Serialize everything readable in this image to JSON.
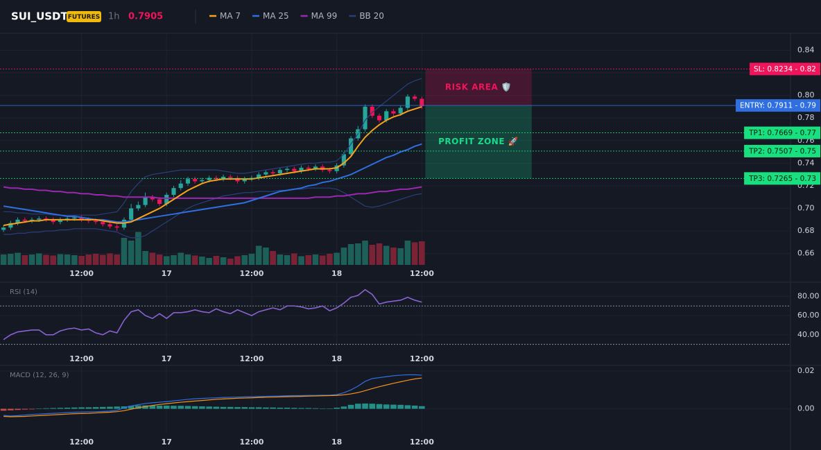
{
  "header": {
    "symbol": "SUI_USDT",
    "badge": "FUTURES",
    "interval": "1h",
    "price": "0.7905"
  },
  "chart_data": [
    {
      "type": "candlestick",
      "categories": [
        null,
        null,
        null,
        null,
        null,
        null,
        null,
        null,
        null,
        null,
        null,
        null,
        null,
        null,
        null,
        null,
        null,
        null,
        null,
        null,
        null,
        null,
        null,
        null,
        null,
        null,
        null,
        null,
        null,
        null,
        null,
        null,
        null,
        null,
        null,
        null,
        null,
        null,
        null,
        null,
        null,
        null,
        null,
        null,
        null,
        null,
        null,
        null,
        null,
        null,
        null,
        null,
        null,
        null,
        null,
        null,
        null,
        null,
        null,
        null
      ],
      "xlim": [
        -0.5,
        111
      ],
      "xticks": [
        {
          "value": 11,
          "label": "12:00"
        },
        {
          "value": 23,
          "label": "17"
        },
        {
          "value": 35,
          "label": "12:00"
        },
        {
          "value": 47,
          "label": "18"
        },
        {
          "value": 59,
          "label": "12:00"
        }
      ],
      "ylim": [
        0.65,
        0.855
      ],
      "yticks": [
        0.66,
        0.68,
        {
          "value": 0.7,
          "label": "0.70"
        },
        0.72,
        0.74,
        0.76,
        0.78,
        {
          "value": 0.8,
          "label": "0.80"
        },
        0.82,
        0.84
      ],
      "up_color": "#26a69a",
      "down_color": "#f0145a",
      "open": [
        0.681,
        0.683,
        0.687,
        0.69,
        0.689,
        0.69,
        0.691,
        0.69,
        0.688,
        0.69,
        0.691,
        0.692,
        0.69,
        0.689,
        0.688,
        0.686,
        0.684,
        0.683,
        0.69,
        0.7,
        0.703,
        0.71,
        0.708,
        0.704,
        0.712,
        0.718,
        0.722,
        0.726,
        0.724,
        0.725,
        0.727,
        0.726,
        0.728,
        0.727,
        0.724,
        0.726,
        0.727,
        0.73,
        0.732,
        0.731,
        0.734,
        0.735,
        0.733,
        0.736,
        0.735,
        0.737,
        0.734,
        0.733,
        0.738,
        0.748,
        0.762,
        0.77,
        0.79,
        0.782,
        0.778,
        0.786,
        0.784,
        0.789,
        0.799,
        0.797
      ],
      "high": [
        0.685,
        0.689,
        0.692,
        0.692,
        0.692,
        0.693,
        0.693,
        0.692,
        0.692,
        0.693,
        0.694,
        0.694,
        0.692,
        0.691,
        0.69,
        0.688,
        0.686,
        0.692,
        0.704,
        0.706,
        0.714,
        0.712,
        0.71,
        0.714,
        0.72,
        0.725,
        0.728,
        0.728,
        0.727,
        0.729,
        0.729,
        0.73,
        0.73,
        0.729,
        0.728,
        0.729,
        0.732,
        0.734,
        0.734,
        0.736,
        0.737,
        0.737,
        0.738,
        0.738,
        0.739,
        0.739,
        0.736,
        0.74,
        0.75,
        0.764,
        0.773,
        0.792,
        0.792,
        0.784,
        0.788,
        0.788,
        0.791,
        0.801,
        0.801,
        0.799
      ],
      "low": [
        0.679,
        0.681,
        0.685,
        0.687,
        0.687,
        0.688,
        0.688,
        0.686,
        0.686,
        0.688,
        0.689,
        0.688,
        0.687,
        0.686,
        0.684,
        0.682,
        0.68,
        0.681,
        0.688,
        0.698,
        0.701,
        0.706,
        0.702,
        0.702,
        0.71,
        0.716,
        0.72,
        0.722,
        0.722,
        0.723,
        0.724,
        0.724,
        0.725,
        0.722,
        0.722,
        0.724,
        0.725,
        0.728,
        0.729,
        0.729,
        0.732,
        0.731,
        0.731,
        0.733,
        0.733,
        0.732,
        0.731,
        0.731,
        0.736,
        0.746,
        0.76,
        0.768,
        0.78,
        0.776,
        0.776,
        0.782,
        0.782,
        0.787,
        0.795,
        0.788
      ],
      "close": [
        0.683,
        0.687,
        0.69,
        0.689,
        0.69,
        0.691,
        0.69,
        0.688,
        0.69,
        0.691,
        0.692,
        0.69,
        0.689,
        0.688,
        0.686,
        0.684,
        0.683,
        0.69,
        0.7,
        0.703,
        0.71,
        0.708,
        0.704,
        0.712,
        0.718,
        0.722,
        0.726,
        0.724,
        0.725,
        0.727,
        0.726,
        0.728,
        0.727,
        0.724,
        0.726,
        0.727,
        0.73,
        0.732,
        0.731,
        0.734,
        0.735,
        0.733,
        0.736,
        0.735,
        0.737,
        0.734,
        0.733,
        0.738,
        0.748,
        0.762,
        0.77,
        0.79,
        0.782,
        0.778,
        0.786,
        0.784,
        0.789,
        0.799,
        0.797,
        0.7905
      ],
      "volume": {
        "ylim": [
          0,
          120
        ],
        "up_color": "#1d5f59",
        "down_color": "#7b2336",
        "values": [
          30,
          32,
          35,
          28,
          30,
          33,
          29,
          27,
          31,
          30,
          28,
          26,
          30,
          32,
          29,
          33,
          30,
          78,
          70,
          95,
          40,
          35,
          30,
          25,
          28,
          35,
          30,
          27,
          24,
          20,
          26,
          22,
          18,
          25,
          28,
          32,
          55,
          50,
          40,
          30,
          28,
          33,
          25,
          28,
          30,
          27,
          32,
          35,
          50,
          60,
          62,
          70,
          58,
          62,
          55,
          50,
          48,
          70,
          65,
          68
        ]
      },
      "series": [
        {
          "name": "MA 7",
          "color": "#f7a21b",
          "values": [
            0.685,
            0.686,
            0.687,
            0.688,
            0.689,
            0.689,
            0.69,
            0.69,
            0.69,
            0.69,
            0.69,
            0.69,
            0.69,
            0.69,
            0.689,
            0.688,
            0.687,
            0.687,
            0.688,
            0.691,
            0.694,
            0.697,
            0.7,
            0.704,
            0.708,
            0.712,
            0.716,
            0.719,
            0.722,
            0.724,
            0.725,
            0.726,
            0.726,
            0.726,
            0.726,
            0.726,
            0.727,
            0.728,
            0.729,
            0.73,
            0.731,
            0.732,
            0.733,
            0.734,
            0.735,
            0.735,
            0.735,
            0.736,
            0.74,
            0.746,
            0.755,
            0.763,
            0.769,
            0.774,
            0.778,
            0.781,
            0.783,
            0.786,
            0.788,
            0.79
          ]
        },
        {
          "name": "MA 25",
          "color": "#2f6fe0",
          "values": [
            0.702,
            0.701,
            0.7,
            0.699,
            0.698,
            0.697,
            0.696,
            0.695,
            0.694,
            0.693,
            0.693,
            0.692,
            0.691,
            0.69,
            0.69,
            0.689,
            0.688,
            0.688,
            0.689,
            0.69,
            0.691,
            0.692,
            0.693,
            0.694,
            0.695,
            0.696,
            0.697,
            0.698,
            0.699,
            0.7,
            0.701,
            0.702,
            0.703,
            0.704,
            0.705,
            0.707,
            0.709,
            0.711,
            0.713,
            0.715,
            0.716,
            0.717,
            0.718,
            0.72,
            0.721,
            0.723,
            0.724,
            0.726,
            0.728,
            0.73,
            0.733,
            0.736,
            0.739,
            0.742,
            0.745,
            0.747,
            0.75,
            0.752,
            0.755,
            0.757
          ]
        },
        {
          "name": "MA 99",
          "color": "#9c27b0",
          "values": [
            0.719,
            0.718,
            0.718,
            0.717,
            0.717,
            0.716,
            0.716,
            0.715,
            0.715,
            0.714,
            0.714,
            0.713,
            0.713,
            0.712,
            0.712,
            0.711,
            0.711,
            0.71,
            0.71,
            0.71,
            0.71,
            0.71,
            0.709,
            0.709,
            0.709,
            0.709,
            0.709,
            0.709,
            0.709,
            0.709,
            0.709,
            0.709,
            0.709,
            0.709,
            0.709,
            0.709,
            0.709,
            0.709,
            0.709,
            0.709,
            0.709,
            0.709,
            0.709,
            0.709,
            0.71,
            0.71,
            0.71,
            0.711,
            0.711,
            0.712,
            0.713,
            0.713,
            0.714,
            0.715,
            0.715,
            0.716,
            0.717,
            0.717,
            0.718,
            0.719
          ]
        },
        {
          "name": "BB 20",
          "color": "#2a3f7a",
          "values": [
            0.697,
            0.697,
            0.696,
            0.696,
            0.695,
            0.695,
            0.695,
            0.694,
            0.694,
            0.694,
            0.694,
            0.694,
            0.694,
            0.694,
            0.695,
            0.696,
            0.697,
            0.705,
            0.715,
            0.722,
            0.728,
            0.73,
            0.731,
            0.732,
            0.733,
            0.734,
            0.734,
            0.734,
            0.734,
            0.734,
            0.734,
            0.733,
            0.732,
            0.731,
            0.731,
            0.732,
            0.733,
            0.734,
            0.735,
            0.736,
            0.737,
            0.738,
            0.739,
            0.74,
            0.74,
            0.741,
            0.741,
            0.742,
            0.748,
            0.757,
            0.766,
            0.778,
            0.785,
            0.79,
            0.795,
            0.8,
            0.805,
            0.81,
            0.813,
            0.815
          ],
          "lower": [
            0.677,
            0.677,
            0.678,
            0.678,
            0.679,
            0.679,
            0.68,
            0.68,
            0.681,
            0.681,
            0.682,
            0.682,
            0.682,
            0.682,
            0.681,
            0.68,
            0.679,
            0.676,
            0.674,
            0.674,
            0.676,
            0.68,
            0.684,
            0.688,
            0.692,
            0.696,
            0.7,
            0.703,
            0.705,
            0.707,
            0.709,
            0.711,
            0.712,
            0.713,
            0.714,
            0.714,
            0.715,
            0.715,
            0.715,
            0.716,
            0.716,
            0.717,
            0.717,
            0.718,
            0.718,
            0.718,
            0.718,
            0.717,
            0.714,
            0.71,
            0.706,
            0.702,
            0.701,
            0.702,
            0.704,
            0.706,
            0.708,
            0.71,
            0.712,
            0.713
          ]
        }
      ],
      "levels": [
        {
          "value": 0.8234,
          "label": "SL: 0.8234 - 0.82",
          "color": "#f0145a",
          "text_color": "#ffffff",
          "style": "dotted"
        },
        {
          "value": 0.7911,
          "label": "ENTRY: 0.7911 - 0.79",
          "color": "#2f6fe0",
          "text_color": "#ffffff",
          "style": "solid"
        },
        {
          "value": 0.7669,
          "label": "TP1: 0.7669 - 0.77",
          "color": "#19e07f",
          "text_color": "#0b1a12",
          "style": "dotted"
        },
        {
          "value": 0.7507,
          "label": "TP2: 0.7507 - 0.75",
          "color": "#19e07f",
          "text_color": "#0b1a12",
          "style": "dotted"
        },
        {
          "value": 0.7265,
          "label": "TP3: 0.7265 - 0.73",
          "color": "#19e07f",
          "text_color": "#0b1a12",
          "style": "dotted"
        }
      ],
      "zones": [
        {
          "label": "RISK AREA 🛡️",
          "from": 0.7911,
          "to": 0.8234,
          "start": 59.5,
          "end": 74.5,
          "color": "#f0145a"
        },
        {
          "label": "PROFIT ZONE 🚀",
          "from": 0.7265,
          "to": 0.7911,
          "start": 59.5,
          "end": 74.5,
          "color": "#19d98b"
        }
      ]
    },
    {
      "type": "line",
      "title": "RSI (14)",
      "color": "#8a63d2",
      "ylim": [
        24,
        94
      ],
      "yticks": [
        {
          "value": 40,
          "label": "40.00"
        },
        {
          "value": 60,
          "label": "60.00"
        },
        {
          "value": 80,
          "label": "80.00"
        }
      ],
      "levels": [
        70,
        30
      ],
      "values": [
        35,
        40,
        43,
        44,
        45,
        45,
        40,
        40,
        44,
        46,
        47,
        45,
        46,
        42,
        40,
        44,
        42,
        55,
        64,
        66,
        60,
        57,
        62,
        57,
        63,
        63,
        64,
        66,
        64,
        63,
        67,
        64,
        62,
        66,
        63,
        60,
        64,
        66,
        68,
        66,
        70,
        70,
        69,
        67,
        68,
        70,
        65,
        68,
        73,
        79,
        81,
        87,
        82,
        72,
        74,
        75,
        76,
        79,
        76,
        74
      ]
    },
    {
      "type": "bar",
      "title": "MACD (12, 26, 9)",
      "ylim": [
        -0.013,
        0.0226
      ],
      "yticks": [
        {
          "value": 0,
          "label": "0.00"
        },
        0.02
      ],
      "up_color": "#26a69a",
      "down_color": "#ef5350",
      "values": [
        -0.001,
        -0.0008,
        -0.0006,
        -0.0004,
        -0.0003,
        0.0002,
        0.0003,
        0.0004,
        0.0005,
        0.0006,
        0.0007,
        0.0008,
        0.0008,
        0.0009,
        0.001,
        0.0011,
        0.0012,
        0.0013,
        0.0016,
        0.0018,
        0.0018,
        0.0018,
        0.0017,
        0.0017,
        0.0016,
        0.0016,
        0.0015,
        0.0014,
        0.0013,
        0.0012,
        0.0011,
        0.001,
        0.001,
        0.0009,
        0.0009,
        0.0008,
        0.0008,
        0.0007,
        0.0007,
        0.0006,
        0.0006,
        0.0005,
        0.0004,
        0.0004,
        0.0003,
        0.0002,
        0.0002,
        0.0006,
        0.0012,
        0.0021,
        0.0027,
        0.0028,
        0.0027,
        0.0025,
        0.0023,
        0.0022,
        0.0021,
        0.0019,
        0.0017,
        0.0014
      ],
      "series": [
        {
          "color": "#2f6fe0",
          "values": [
            -0.0035,
            -0.0038,
            -0.0036,
            -0.0033,
            -0.003,
            -0.0028,
            -0.0026,
            -0.0024,
            -0.0022,
            -0.002,
            -0.0018,
            -0.0017,
            -0.0016,
            -0.0015,
            -0.0014,
            -0.0012,
            -0.0008,
            0.0005,
            0.0015,
            0.0022,
            0.0028,
            0.0032,
            0.0035,
            0.0038,
            0.0042,
            0.0046,
            0.005,
            0.0053,
            0.0055,
            0.0057,
            0.0058,
            0.006,
            0.0061,
            0.0062,
            0.0063,
            0.0064,
            0.0065,
            0.0066,
            0.0067,
            0.0068,
            0.0069,
            0.007,
            0.007,
            0.0071,
            0.0071,
            0.0072,
            0.0072,
            0.0075,
            0.0085,
            0.01,
            0.012,
            0.0145,
            0.016,
            0.0165,
            0.017,
            0.0175,
            0.0178,
            0.018,
            0.018,
            0.0178
          ]
        },
        {
          "color": "#f7931a",
          "values": [
            -0.004,
            -0.0042,
            -0.0041,
            -0.004,
            -0.0038,
            -0.0036,
            -0.0034,
            -0.0032,
            -0.003,
            -0.0028,
            -0.0026,
            -0.0025,
            -0.0024,
            -0.0022,
            -0.002,
            -0.0018,
            -0.0015,
            -0.001,
            -0.0002,
            0.0005,
            0.0012,
            0.0018,
            0.0023,
            0.0027,
            0.0031,
            0.0035,
            0.0038,
            0.0041,
            0.0044,
            0.0047,
            0.005,
            0.0052,
            0.0054,
            0.0056,
            0.0057,
            0.0058,
            0.006,
            0.0061,
            0.0062,
            0.0063,
            0.0064,
            0.0065,
            0.0066,
            0.0067,
            0.0068,
            0.0069,
            0.007,
            0.0071,
            0.0074,
            0.0079,
            0.0086,
            0.0096,
            0.0107,
            0.0117,
            0.0126,
            0.0135,
            0.0143,
            0.0151,
            0.0158,
            0.0163
          ]
        }
      ]
    }
  ]
}
